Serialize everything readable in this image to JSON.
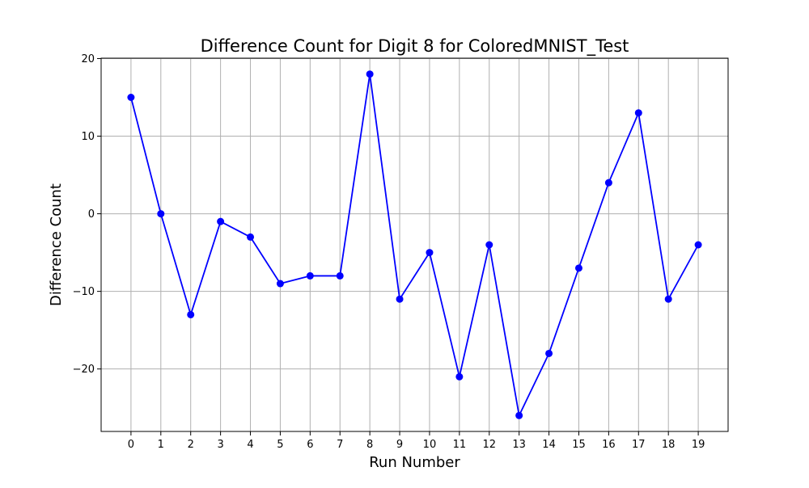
{
  "chart_data": {
    "type": "line",
    "title": "Difference Count for Digit 8 for ColoredMNIST_Test",
    "xlabel": "Run Number",
    "ylabel": "Difference Count",
    "x": [
      0,
      1,
      2,
      3,
      4,
      5,
      6,
      7,
      8,
      9,
      10,
      11,
      12,
      13,
      14,
      15,
      16,
      17,
      18,
      19
    ],
    "series": [
      {
        "values": [
          15,
          0,
          -13,
          -1,
          -3,
          -9,
          -8,
          -8,
          18,
          -11,
          -5,
          -21,
          -4,
          -26,
          -18,
          -7,
          4,
          13,
          -11,
          -4
        ],
        "color": "#0000ff",
        "marker": "circle"
      }
    ],
    "xlim": [
      -1,
      20
    ],
    "ylim": [
      -28.05,
      20.05
    ],
    "yticks": [
      -20,
      -10,
      0,
      10,
      20
    ],
    "grid": true
  }
}
